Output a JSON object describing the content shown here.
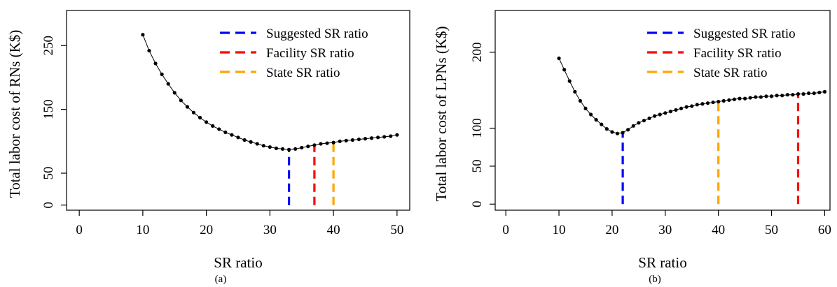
{
  "chart_data": [
    {
      "type": "line",
      "panel_label": "(a)",
      "xlabel": "SR ratio",
      "ylabel": "Total labor cost of RNs (K$)",
      "xlim": [
        -2,
        52
      ],
      "ylim": [
        -8,
        305
      ],
      "x_ticks": [
        0,
        10,
        20,
        30,
        40,
        50
      ],
      "y_ticks": [
        0,
        50,
        150,
        250
      ],
      "legend_position": "top-right",
      "series": [
        {
          "type": "line-points",
          "x": [
            10,
            11,
            12,
            13,
            14,
            15,
            16,
            17,
            18,
            19,
            20,
            21,
            22,
            23,
            24,
            25,
            26,
            27,
            28,
            29,
            30,
            31,
            32,
            33,
            34,
            35,
            36,
            37,
            38,
            39,
            40,
            41,
            42,
            43,
            44,
            45,
            46,
            47,
            48,
            49,
            50
          ],
          "y": [
            267,
            242,
            222,
            205,
            190,
            176,
            164,
            154,
            145,
            137,
            130,
            124,
            119,
            114,
            110,
            106,
            102,
            99,
            96,
            93,
            91,
            89,
            88,
            87,
            88,
            90,
            92,
            94,
            96,
            97,
            98,
            100,
            101,
            102,
            103,
            104,
            105,
            106,
            107,
            108,
            110
          ]
        }
      ],
      "reference_lines": [
        {
          "name": "Suggested SR ratio",
          "x": 33,
          "y_top": 87,
          "color": "#0000ff"
        },
        {
          "name": "Facility SR ratio",
          "x": 37,
          "y_top": 94,
          "color": "#ff0000"
        },
        {
          "name": "State SR ratio",
          "x": 40,
          "y_top": 98,
          "color": "#ffa500"
        }
      ]
    },
    {
      "type": "line",
      "panel_label": "(b)",
      "xlabel": "SR ratio",
      "ylabel": "Total labor cost of LPNs (K$)",
      "xlim": [
        -2,
        61
      ],
      "ylim": [
        -8,
        255
      ],
      "x_ticks": [
        0,
        10,
        20,
        30,
        40,
        50,
        60
      ],
      "y_ticks": [
        0,
        50,
        100,
        200
      ],
      "legend_position": "top-right",
      "series": [
        {
          "type": "line-points",
          "x": [
            10,
            11,
            12,
            13,
            14,
            15,
            16,
            17,
            18,
            19,
            20,
            21,
            22,
            23,
            24,
            25,
            26,
            27,
            28,
            29,
            30,
            31,
            32,
            33,
            34,
            35,
            36,
            37,
            38,
            39,
            40,
            41,
            42,
            43,
            44,
            45,
            46,
            47,
            48,
            49,
            50,
            51,
            52,
            53,
            54,
            55,
            56,
            57,
            58,
            59,
            60
          ],
          "y": [
            192,
            177,
            162,
            148,
            136,
            126,
            118,
            111,
            105,
            99,
            95,
            93,
            94,
            98,
            103,
            107,
            110,
            113,
            116,
            118,
            120,
            122,
            124,
            126,
            128,
            129,
            131,
            132,
            133,
            134,
            135,
            136,
            137,
            138,
            139,
            139,
            140,
            141,
            141,
            142,
            142,
            143,
            143,
            144,
            144,
            145,
            145,
            146,
            146,
            147,
            148
          ]
        }
      ],
      "reference_lines": [
        {
          "name": "Suggested SR ratio",
          "x": 22,
          "y_top": 94,
          "color": "#0000ff"
        },
        {
          "name": "State SR ratio",
          "x": 40,
          "y_top": 135,
          "color": "#ffa500"
        },
        {
          "name": "Facility SR ratio",
          "x": 55,
          "y_top": 144,
          "color": "#ff0000"
        }
      ]
    }
  ],
  "legend": {
    "items": [
      {
        "label": "Suggested SR ratio",
        "color": "#0000ff"
      },
      {
        "label": "Facility SR ratio",
        "color": "#ff0000"
      },
      {
        "label": "State SR ratio",
        "color": "#ffa500"
      }
    ]
  }
}
